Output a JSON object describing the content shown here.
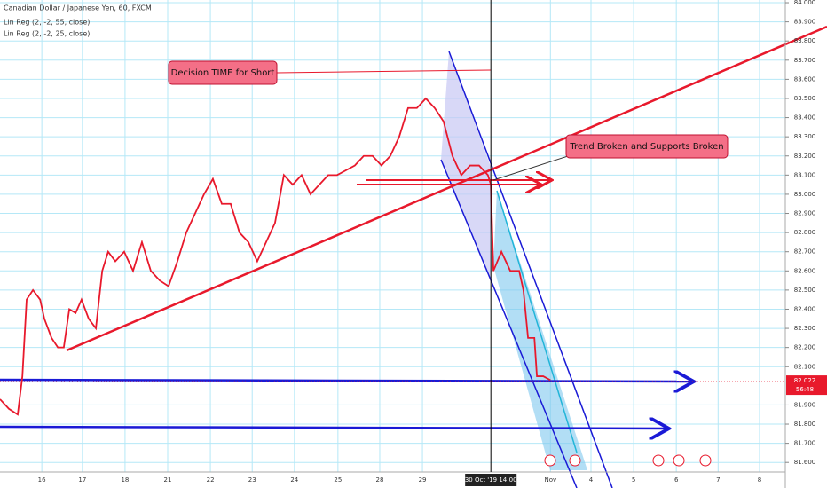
{
  "chart_data": {
    "type": "line",
    "title": "Canadian Dollar / Japanese Yen, 60, FXCM",
    "indicators": [
      "Lin Reg (2, -2, 55, close)",
      "Lin Reg (2, -2, 25, close)"
    ],
    "annotations": [
      "Decision TIME for Short",
      "Trend Broken and Supports Broken"
    ],
    "x": [
      0,
      0.21,
      0.42,
      0.53,
      0.63,
      0.78,
      0.95,
      1.05,
      1.22,
      1.37,
      1.51,
      1.64,
      1.79,
      1.93,
      2.1,
      2.27,
      2.42,
      2.56,
      2.73,
      2.94,
      3.15,
      3.36,
      3.57,
      3.78,
      3.99,
      4.2,
      4.41,
      4.62,
      4.83,
      5.04,
      5.25,
      5.46,
      5.67,
      5.88,
      6.09,
      6.3,
      6.51,
      6.72,
      6.93,
      7.14,
      7.35,
      7.56,
      7.77,
      7.98,
      8.4,
      8.61,
      8.82,
      9.03,
      9.24,
      9.45,
      9.66,
      9.87,
      10.08,
      10.29,
      10.5,
      10.71,
      10.92,
      11.13,
      11.34,
      11.55,
      11.62,
      11.68,
      11.87,
      12.08,
      12.29,
      12.39,
      12.5,
      12.65,
      12.71,
      12.86,
      13.03
    ],
    "series": [
      {
        "name": "CADJPY",
        "color": "#e8192c",
        "values": [
          81.93,
          81.88,
          81.85,
          82.05,
          82.45,
          82.5,
          82.45,
          82.35,
          82.25,
          82.2,
          82.2,
          82.4,
          82.38,
          82.45,
          82.35,
          82.3,
          82.6,
          82.7,
          82.65,
          82.7,
          82.6,
          82.75,
          82.6,
          82.55,
          82.52,
          82.65,
          82.8,
          82.9,
          83.0,
          83.08,
          82.95,
          82.95,
          82.8,
          82.75,
          82.65,
          82.75,
          82.85,
          83.1,
          83.05,
          83.1,
          83.0,
          83.05,
          83.1,
          83.1,
          83.15,
          83.2,
          83.2,
          83.15,
          83.2,
          83.3,
          83.45,
          83.45,
          83.5,
          83.45,
          83.38,
          83.2,
          83.1,
          83.15,
          83.15,
          83.1,
          83.05,
          82.6,
          82.7,
          82.6,
          82.6,
          82.5,
          82.25,
          82.25,
          82.05,
          82.05,
          82.03
        ]
      }
    ],
    "xlim": [
      0,
      18.59
    ],
    "xticks": [
      {
        "value": 0.99,
        "label": "16"
      },
      {
        "value": 1.95,
        "label": "17"
      },
      {
        "value": 2.96,
        "label": "18"
      },
      {
        "value": 3.97,
        "label": "21"
      },
      {
        "value": 4.98,
        "label": "22"
      },
      {
        "value": 5.97,
        "label": "23"
      },
      {
        "value": 6.97,
        "label": "24"
      },
      {
        "value": 8.0,
        "label": "25"
      },
      {
        "value": 8.99,
        "label": "28"
      },
      {
        "value": 10.0,
        "label": "29"
      },
      {
        "value": 13.03,
        "label": "Nov"
      },
      {
        "value": 13.99,
        "label": "4"
      },
      {
        "value": 15.0,
        "label": "5"
      },
      {
        "value": 16.01,
        "label": "6"
      },
      {
        "value": 17.0,
        "label": "7"
      },
      {
        "value": 17.98,
        "label": "8"
      }
    ],
    "crosshair": {
      "x": 11.62,
      "label": "30 Oct '19 14:00"
    },
    "ylim": [
      81.55,
      84.014
    ],
    "yticks": [
      {
        "value": 81.6,
        "label": "81.600"
      },
      {
        "value": 81.7,
        "label": "81.700"
      },
      {
        "value": 81.8,
        "label": "81.800"
      },
      {
        "value": 81.9,
        "label": "81.900"
      },
      {
        "value": 82.1,
        "label": "82.100"
      },
      {
        "value": 82.2,
        "label": "82.200"
      },
      {
        "value": 82.3,
        "label": "82.300"
      },
      {
        "value": 82.4,
        "label": "82.400"
      },
      {
        "value": 82.5,
        "label": "82.500"
      },
      {
        "value": 82.6,
        "label": "82.600"
      },
      {
        "value": 82.7,
        "label": "82.700"
      },
      {
        "value": 82.8,
        "label": "82.800"
      },
      {
        "value": 82.9,
        "label": "82.900"
      },
      {
        "value": 83.0,
        "label": "83.000"
      },
      {
        "value": 83.1,
        "label": "83.100"
      },
      {
        "value": 83.2,
        "label": "83.200"
      },
      {
        "value": 83.3,
        "label": "83.300"
      },
      {
        "value": 83.4,
        "label": "83.400"
      },
      {
        "value": 83.5,
        "label": "83.500"
      },
      {
        "value": 83.6,
        "label": "83.600"
      },
      {
        "value": 83.7,
        "label": "83.700"
      },
      {
        "value": 83.8,
        "label": "83.800"
      },
      {
        "value": 83.9,
        "label": "83.900"
      },
      {
        "value": 84.0,
        "label": "84.000"
      }
    ],
    "last_price": {
      "value": 82.022,
      "label": "82.022",
      "countdown": "56:48"
    },
    "grid": true
  }
}
